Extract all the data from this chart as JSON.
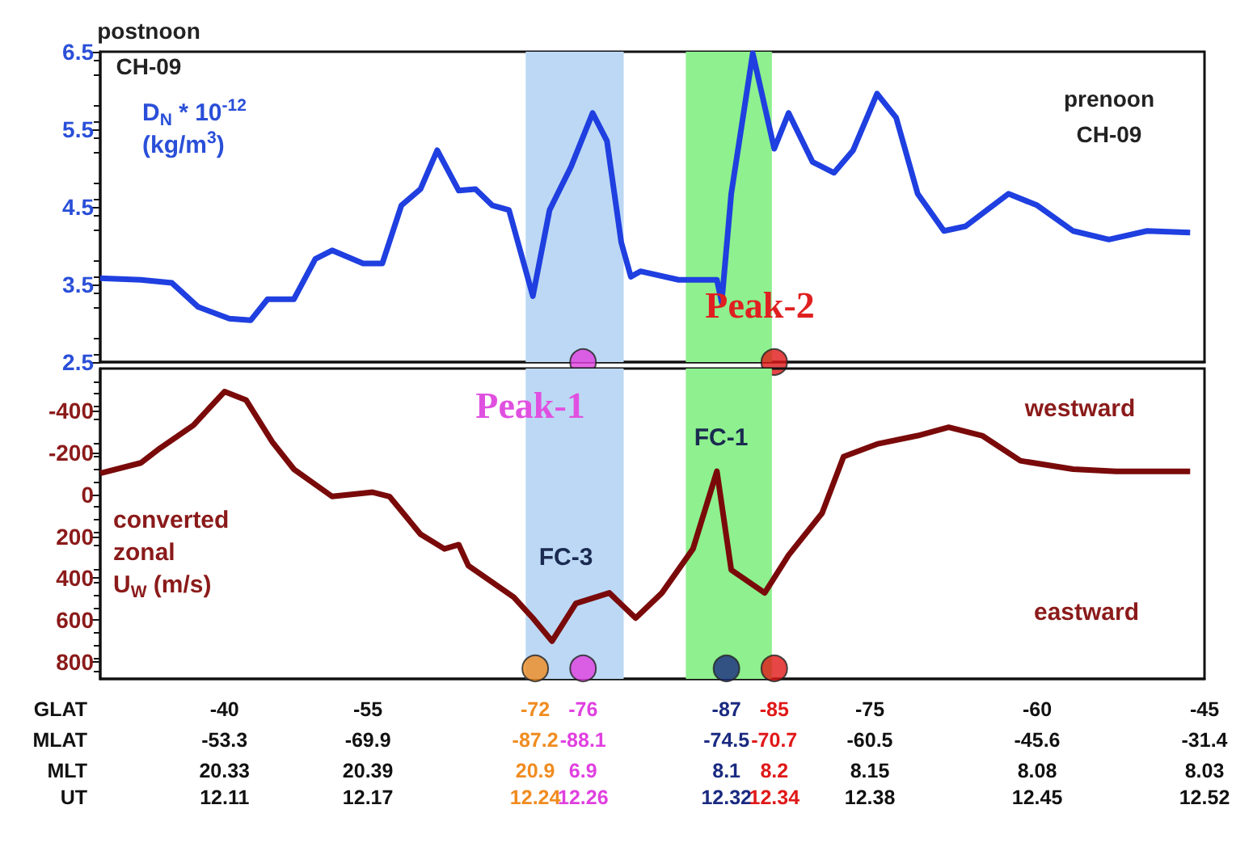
{
  "chart_data": [
    {
      "type": "line",
      "ylabel": "D$_{N}$ * 10$^{-12}$\n(kg/m$^{3}$)",
      "xlim": [
        12.058,
        12.52
      ],
      "ylim": [
        2.5,
        6.5
      ],
      "yticks": [
        2.5,
        3.5,
        4.5,
        5.5,
        6.5
      ],
      "tick_labels": "y",
      "series": [
        {
          "color": "#1f3fe0",
          "x": [
            12.058,
            12.075,
            12.088,
            12.099,
            12.112,
            12.121,
            12.128,
            12.139,
            12.148,
            12.155,
            12.168,
            12.176,
            12.184,
            12.192,
            12.199,
            12.208,
            12.215,
            12.222,
            12.229,
            12.239,
            12.246,
            12.255,
            12.264,
            12.27,
            12.276,
            12.28,
            12.284,
            12.3,
            12.316,
            12.318,
            12.322,
            12.331,
            12.34,
            12.346,
            12.356,
            12.365,
            12.373,
            12.383,
            12.391,
            12.4,
            12.411,
            12.42,
            12.438,
            12.45,
            12.465,
            12.48,
            12.496,
            12.514
          ],
          "values": [
            3.58,
            3.56,
            3.52,
            3.21,
            3.06,
            3.04,
            3.31,
            3.31,
            3.83,
            3.94,
            3.77,
            3.77,
            4.52,
            4.73,
            5.23,
            4.71,
            4.73,
            4.52,
            4.46,
            3.35,
            4.46,
            5.02,
            5.71,
            5.35,
            4.04,
            3.6,
            3.67,
            3.56,
            3.56,
            3.27,
            4.67,
            6.48,
            5.25,
            5.71,
            5.08,
            4.94,
            5.23,
            5.96,
            5.65,
            4.67,
            4.19,
            4.25,
            4.67,
            4.52,
            4.19,
            4.08,
            4.19,
            4.17
          ]
        },
        {
          "type": "scatter",
          "marker": "circle",
          "x": [
            12.26,
            12.34
          ],
          "values": [
            2.5,
            2.5
          ],
          "colors": [
            "#e040e0",
            "#e01818"
          ]
        }
      ],
      "bands": [
        {
          "axis": "x",
          "from": 12.236,
          "to": 12.277,
          "color": "#bcd8f4"
        },
        {
          "axis": "x",
          "from": 12.303,
          "to": 12.339,
          "color": "#8ef08e"
        }
      ],
      "annotations": [
        "postnoon\nCH-09",
        "prenoon\nCH-09",
        "Peak-2"
      ]
    },
    {
      "type": "line",
      "ylabel": "converted\nzonal\nU$_{W}$ (m/s)",
      "xlabel": "UT",
      "xlim": [
        12.058,
        12.52
      ],
      "ylim": [
        880,
        -600
      ],
      "yticks": [
        -400,
        -200,
        0,
        200,
        400,
        600,
        800
      ],
      "xticks": [
        12.11,
        12.17,
        12.24,
        12.26,
        12.32,
        12.34,
        12.38,
        12.45,
        12.52
      ],
      "series": [
        {
          "color": "#7a0a0a",
          "x": [
            12.058,
            12.075,
            12.083,
            12.097,
            12.11,
            12.119,
            12.13,
            12.139,
            12.155,
            12.172,
            12.179,
            12.192,
            12.202,
            12.208,
            12.212,
            12.231,
            12.239,
            12.247,
            12.257,
            12.271,
            12.282,
            12.293,
            12.306,
            12.316,
            12.322,
            12.336,
            12.346,
            12.36,
            12.369,
            12.383,
            12.4,
            12.413,
            12.427,
            12.443,
            12.465,
            12.483,
            12.514
          ],
          "values": [
            -100,
            -150,
            -220,
            -330,
            -490,
            -450,
            -250,
            -120,
            10,
            -10,
            10,
            190,
            260,
            240,
            340,
            490,
            590,
            700,
            520,
            470,
            590,
            470,
            260,
            -110,
            360,
            470,
            290,
            90,
            -180,
            -240,
            -280,
            -320,
            -280,
            -160,
            -120,
            -110,
            -110
          ]
        },
        {
          "type": "scatter",
          "marker": "circle",
          "x": [
            12.24,
            12.26,
            12.32,
            12.34
          ],
          "values": [
            830,
            830,
            830,
            830
          ],
          "colors": [
            "#f08c20",
            "#e040e0",
            "#1a2a80",
            "#e01818"
          ]
        }
      ],
      "bands": [
        {
          "axis": "x",
          "from": 12.236,
          "to": 12.277,
          "color": "#bcd8f4"
        },
        {
          "axis": "x",
          "from": 12.303,
          "to": 12.339,
          "color": "#8ef08e"
        }
      ],
      "annotations": [
        "westward",
        "eastward",
        "Peak-1",
        "FC-3",
        "FC-1"
      ]
    },
    {
      "type": "other",
      "annotations": [
        "GLAT",
        "-40",
        "-55",
        "-72",
        "-76",
        "-87",
        "-85",
        "-75",
        "-60",
        "-45",
        "MLAT",
        "-53.3",
        "-69.9",
        "-87.2",
        "-88.1",
        "-74.5",
        "-70.7",
        "-60.5",
        "-45.6",
        "-31.4",
        "MLT",
        "20.33",
        "20.39",
        "20.9",
        "6.9",
        "8.1",
        "8.2",
        "8.15",
        "8.08",
        "8.03"
      ]
    }
  ]
}
